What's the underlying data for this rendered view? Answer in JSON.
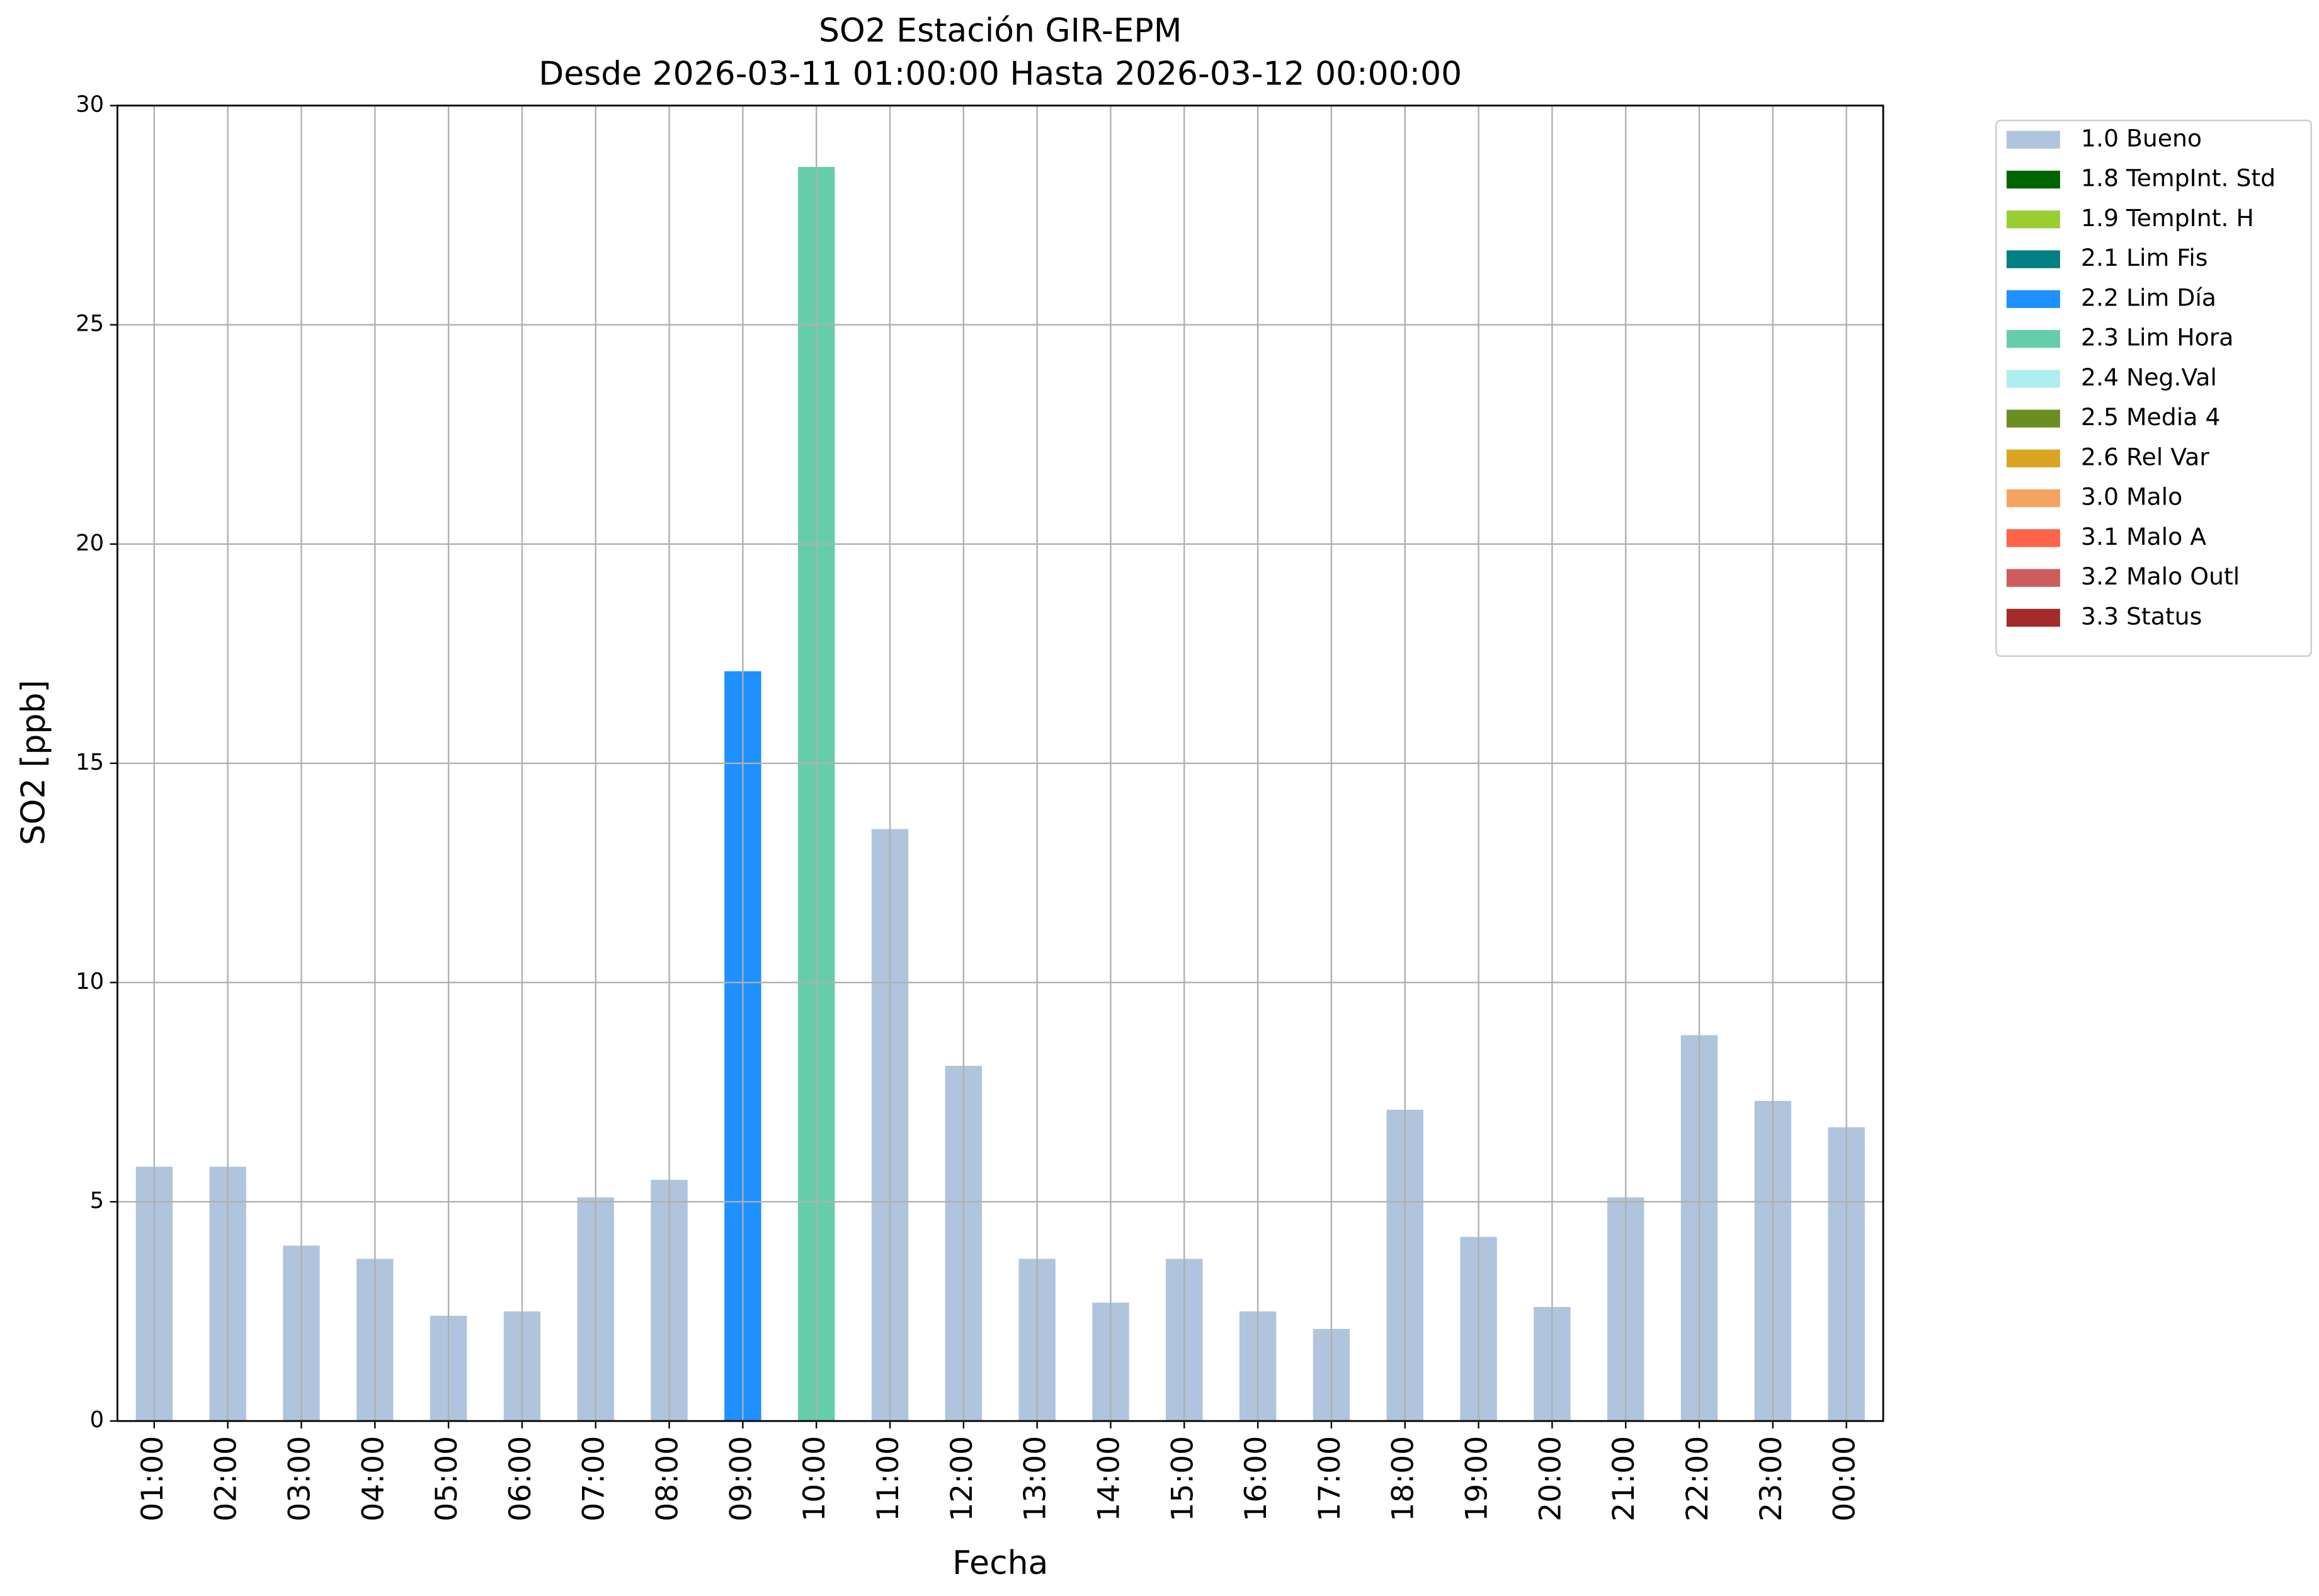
{
  "chart_data": {
    "type": "bar",
    "stacked": true,
    "title": "SO2 Estación GIR-EPM",
    "subtitle": "Desde 2026-03-11 01:00:00 Hasta 2026-03-12 00:00:00",
    "x_label": "Fecha",
    "y_label": "SO2 [ppb]",
    "categories": [
      "01:00",
      "02:00",
      "03:00",
      "04:00",
      "05:00",
      "06:00",
      "07:00",
      "08:00",
      "09:00",
      "10:00",
      "11:00",
      "12:00",
      "13:00",
      "14:00",
      "15:00",
      "16:00",
      "17:00",
      "18:00",
      "19:00",
      "20:00",
      "21:00",
      "22:00",
      "23:00",
      "00:00"
    ],
    "series": [
      {
        "name": "1.0 Bueno",
        "color": "#b0c4de",
        "values": [
          5.8,
          5.8,
          4.0,
          3.7,
          2.4,
          2.5,
          5.1,
          5.5,
          null,
          null,
          13.5,
          8.1,
          3.7,
          2.7,
          3.7,
          2.5,
          2.1,
          7.1,
          4.2,
          2.6,
          5.1,
          8.8,
          7.3,
          6.7
        ]
      },
      {
        "name": "1.8 TempInt. Std",
        "color": "#006400",
        "values": [
          null,
          null,
          null,
          null,
          null,
          null,
          null,
          null,
          null,
          null,
          null,
          null,
          null,
          null,
          null,
          null,
          null,
          null,
          null,
          null,
          null,
          null,
          null,
          null
        ]
      },
      {
        "name": "1.9 TempInt. H",
        "color": "#9acd32",
        "values": [
          null,
          null,
          null,
          null,
          null,
          null,
          null,
          null,
          null,
          null,
          null,
          null,
          null,
          null,
          null,
          null,
          null,
          null,
          null,
          null,
          null,
          null,
          null,
          null
        ]
      },
      {
        "name": "2.1 Lim Fis",
        "color": "#008080",
        "values": [
          null,
          null,
          null,
          null,
          null,
          null,
          null,
          null,
          null,
          null,
          null,
          null,
          null,
          null,
          null,
          null,
          null,
          null,
          null,
          null,
          null,
          null,
          null,
          null
        ]
      },
      {
        "name": "2.2 Lim Día",
        "color": "#1e90ff",
        "values": [
          null,
          null,
          null,
          null,
          null,
          null,
          null,
          null,
          17.1,
          null,
          null,
          null,
          null,
          null,
          null,
          null,
          null,
          null,
          null,
          null,
          null,
          null,
          null,
          null
        ]
      },
      {
        "name": "2.3 Lim Hora",
        "color": "#66cdaa",
        "values": [
          null,
          null,
          null,
          null,
          null,
          null,
          null,
          null,
          null,
          28.6,
          null,
          null,
          null,
          null,
          null,
          null,
          null,
          null,
          null,
          null,
          null,
          null,
          null,
          null
        ]
      },
      {
        "name": "2.4 Neg.Val",
        "color": "#afeeee",
        "values": [
          null,
          null,
          null,
          null,
          null,
          null,
          null,
          null,
          null,
          null,
          null,
          null,
          null,
          null,
          null,
          null,
          null,
          null,
          null,
          null,
          null,
          null,
          null,
          null
        ]
      },
      {
        "name": "2.5 Media 4",
        "color": "#6b8e23",
        "values": [
          null,
          null,
          null,
          null,
          null,
          null,
          null,
          null,
          null,
          null,
          null,
          null,
          null,
          null,
          null,
          null,
          null,
          null,
          null,
          null,
          null,
          null,
          null,
          null
        ]
      },
      {
        "name": "2.6 Rel Var",
        "color": "#daa520",
        "values": [
          null,
          null,
          null,
          null,
          null,
          null,
          null,
          null,
          null,
          null,
          null,
          null,
          null,
          null,
          null,
          null,
          null,
          null,
          null,
          null,
          null,
          null,
          null,
          null
        ]
      },
      {
        "name": "3.0 Malo",
        "color": "#f4a460",
        "values": [
          null,
          null,
          null,
          null,
          null,
          null,
          null,
          null,
          null,
          null,
          null,
          null,
          null,
          null,
          null,
          null,
          null,
          null,
          null,
          null,
          null,
          null,
          null,
          null
        ]
      },
      {
        "name": "3.1 Malo A",
        "color": "#ff6347",
        "values": [
          null,
          null,
          null,
          null,
          null,
          null,
          null,
          null,
          null,
          null,
          null,
          null,
          null,
          null,
          null,
          null,
          null,
          null,
          null,
          null,
          null,
          null,
          null,
          null
        ]
      },
      {
        "name": "3.2 Malo Outl",
        "color": "#cd5c5c",
        "values": [
          null,
          null,
          null,
          null,
          null,
          null,
          null,
          null,
          null,
          null,
          null,
          null,
          null,
          null,
          null,
          null,
          null,
          null,
          null,
          null,
          null,
          null,
          null,
          null
        ]
      },
      {
        "name": "3.3 Status",
        "color": "#a52a2a",
        "values": [
          null,
          null,
          null,
          null,
          null,
          null,
          null,
          null,
          null,
          null,
          null,
          null,
          null,
          null,
          null,
          null,
          null,
          null,
          null,
          null,
          null,
          null,
          null,
          null
        ]
      }
    ],
    "ylim": [
      0,
      30
    ],
    "yticks": [
      0,
      5,
      10,
      15,
      20,
      25,
      30
    ],
    "grid": true,
    "legend": "outside-right"
  }
}
